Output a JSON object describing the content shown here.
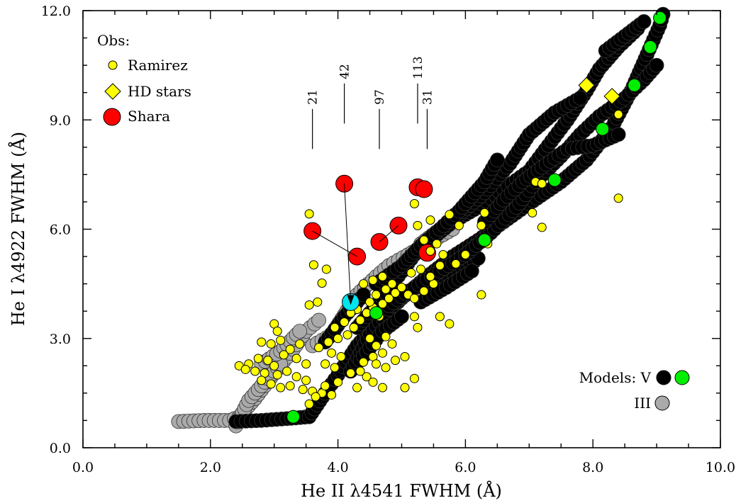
{
  "chart_data": {
    "type": "scatter",
    "xlabel": "He II λ4541 FWHM (Å)",
    "ylabel": "He I λ4922 FWHM (Å)",
    "xlim": [
      0,
      10
    ],
    "ylim": [
      0,
      12
    ],
    "x_ticks": [
      "0.0",
      "2.0",
      "4.0",
      "6.0",
      "8.0",
      "10.0"
    ],
    "y_ticks": [
      "0.0",
      "3.0",
      "6.0",
      "9.0",
      "12.0"
    ],
    "grid": false,
    "legend": {
      "title": "Obs:",
      "placement": "top-left",
      "entries": [
        {
          "label": "Ramirez",
          "marker": "small-circle",
          "color": "#ffff00"
        },
        {
          "label": "HD stars",
          "marker": "diamond",
          "color": "#ffff00"
        },
        {
          "label": "Shara",
          "marker": "large-circle",
          "color": "#ff0000"
        }
      ]
    },
    "models_legend": {
      "placement": "bottom-right",
      "v_label": "Models: V",
      "iii_label": "III",
      "v_colors": [
        "#000000",
        "#00ee00"
      ],
      "iii_color": "#aaaaaa"
    },
    "column_markers": [
      {
        "label": "21",
        "x": 3.6,
        "y_bottom": 8.2,
        "y_top": 9.3
      },
      {
        "label": "42",
        "x": 4.1,
        "y_bottom": 8.9,
        "y_top": 10.0
      },
      {
        "label": "97",
        "x": 4.65,
        "y_bottom": 8.2,
        "y_top": 9.3
      },
      {
        "label": "113",
        "x": 5.25,
        "y_bottom": 8.9,
        "y_top": 10.0
      },
      {
        "label": "31",
        "x": 5.4,
        "y_bottom": 8.2,
        "y_top": 9.3
      }
    ],
    "series": [
      {
        "name": "Shara",
        "marker": "large-circle",
        "color": "#ff0000",
        "points": [
          [
            4.1,
            7.25
          ],
          [
            3.6,
            5.95
          ],
          [
            4.3,
            5.25
          ],
          [
            4.65,
            5.65
          ],
          [
            4.95,
            6.1
          ],
          [
            5.25,
            7.15
          ],
          [
            5.35,
            7.1
          ],
          [
            5.4,
            5.35
          ]
        ]
      },
      {
        "name": "HD stars",
        "marker": "diamond",
        "color": "#ffff00",
        "points": [
          [
            7.9,
            9.95
          ],
          [
            8.3,
            9.65
          ]
        ]
      },
      {
        "name": "Ramirez",
        "marker": "small-circle",
        "color": "#ffff00",
        "points": [
          [
            3.55,
            6.42
          ],
          [
            3.62,
            5.02
          ],
          [
            3.75,
            4.52
          ],
          [
            3.82,
            4.9
          ],
          [
            3.68,
            4.0
          ],
          [
            3.55,
            3.92
          ],
          [
            3.0,
            3.4
          ],
          [
            3.05,
            3.2
          ],
          [
            2.8,
            2.9
          ],
          [
            2.95,
            2.85
          ],
          [
            3.1,
            2.95
          ],
          [
            3.25,
            2.7
          ],
          [
            3.4,
            2.85
          ],
          [
            3.15,
            2.55
          ],
          [
            2.75,
            2.45
          ],
          [
            2.9,
            2.4
          ],
          [
            3.0,
            2.25
          ],
          [
            2.6,
            2.3
          ],
          [
            2.45,
            2.25
          ],
          [
            2.55,
            2.15
          ],
          [
            2.7,
            2.1
          ],
          [
            2.85,
            2.05
          ],
          [
            3.05,
            2.0
          ],
          [
            3.2,
            2.1
          ],
          [
            3.35,
            1.95
          ],
          [
            3.5,
            1.85
          ],
          [
            2.8,
            1.85
          ],
          [
            2.95,
            1.75
          ],
          [
            3.1,
            1.65
          ],
          [
            3.25,
            1.7
          ],
          [
            3.45,
            1.6
          ],
          [
            3.6,
            1.55
          ],
          [
            3.75,
            1.5
          ],
          [
            3.9,
            1.45
          ],
          [
            3.65,
            1.4
          ],
          [
            3.55,
            1.2
          ],
          [
            3.8,
            2.3
          ],
          [
            3.95,
            2.2
          ],
          [
            4.05,
            2.5
          ],
          [
            3.9,
            2.6
          ],
          [
            3.7,
            2.75
          ],
          [
            3.85,
            2.9
          ],
          [
            4.0,
            3.0
          ],
          [
            4.15,
            3.1
          ],
          [
            3.95,
            3.3
          ],
          [
            4.1,
            3.45
          ],
          [
            4.25,
            3.3
          ],
          [
            4.35,
            3.5
          ],
          [
            4.45,
            3.7
          ],
          [
            4.55,
            3.85
          ],
          [
            4.65,
            3.6
          ],
          [
            4.7,
            3.95
          ],
          [
            4.8,
            4.1
          ],
          [
            4.9,
            4.25
          ],
          [
            4.75,
            4.35
          ],
          [
            4.6,
            4.2
          ],
          [
            4.5,
            4.0
          ],
          [
            4.3,
            3.8
          ],
          [
            4.2,
            3.7
          ],
          [
            4.4,
            4.5
          ],
          [
            4.55,
            4.6
          ],
          [
            4.7,
            4.7
          ],
          [
            4.85,
            4.5
          ],
          [
            5.0,
            4.4
          ],
          [
            5.1,
            4.2
          ],
          [
            5.2,
            4.1
          ],
          [
            5.35,
            4.3
          ],
          [
            5.5,
            4.5
          ],
          [
            5.45,
            4.7
          ],
          [
            5.3,
            4.9
          ],
          [
            5.15,
            4.8
          ],
          [
            5.6,
            5.0
          ],
          [
            5.65,
            5.3
          ],
          [
            5.55,
            5.6
          ],
          [
            5.45,
            5.4
          ],
          [
            5.35,
            5.7
          ],
          [
            5.25,
            6.1
          ],
          [
            5.45,
            6.25
          ],
          [
            5.75,
            6.4
          ],
          [
            5.9,
            6.1
          ],
          [
            5.2,
            6.7
          ],
          [
            5.6,
            3.6
          ],
          [
            5.75,
            3.4
          ],
          [
            5.25,
            3.3
          ],
          [
            5.2,
            3.6
          ],
          [
            4.5,
            3.0
          ],
          [
            4.6,
            2.8
          ],
          [
            4.75,
            3.05
          ],
          [
            4.85,
            2.85
          ],
          [
            4.7,
            2.6
          ],
          [
            4.55,
            2.5
          ],
          [
            4.4,
            2.35
          ],
          [
            4.6,
            2.3
          ],
          [
            4.75,
            2.2
          ],
          [
            4.9,
            2.4
          ],
          [
            5.05,
            2.5
          ],
          [
            4.45,
            1.95
          ],
          [
            4.55,
            1.8
          ],
          [
            4.3,
            1.65
          ],
          [
            4.7,
            1.65
          ],
          [
            5.05,
            1.65
          ],
          [
            5.2,
            1.9
          ],
          [
            4.0,
            1.8
          ],
          [
            3.8,
            1.7
          ],
          [
            3.5,
            2.3
          ],
          [
            3.35,
            2.45
          ],
          [
            4.2,
            2.05
          ],
          [
            4.35,
            2.1
          ],
          [
            6.35,
            5.6
          ],
          [
            6.25,
            6.1
          ],
          [
            6.3,
            6.45
          ],
          [
            6.25,
            4.2
          ],
          [
            6.0,
            5.3
          ],
          [
            5.85,
            5.05
          ],
          [
            7.1,
            7.3
          ],
          [
            7.2,
            7.25
          ],
          [
            7.05,
            6.45
          ],
          [
            7.2,
            6.05
          ],
          [
            8.4,
            6.85
          ],
          [
            8.4,
            9.15
          ]
        ]
      },
      {
        "name": "Shara bare circle",
        "marker": "large-circle",
        "color": "#00e5ee",
        "points": [
          [
            4.2,
            4.0
          ]
        ]
      },
      {
        "name": "Models V (green)",
        "marker": "medium-circle",
        "color": "#00ee00",
        "points": [
          [
            9.05,
            11.8
          ],
          [
            8.9,
            11.0
          ],
          [
            8.65,
            9.95
          ],
          [
            8.15,
            8.75
          ],
          [
            7.4,
            7.35
          ],
          [
            6.3,
            5.7
          ],
          [
            3.3,
            0.85
          ],
          [
            4.6,
            3.7
          ]
        ]
      }
    ],
    "model_tracks": {
      "V": [
        [
          [
            2.4,
            0.72
          ],
          [
            2.8,
            0.75
          ],
          [
            3.2,
            0.8
          ],
          [
            3.55,
            0.85
          ],
          [
            3.8,
            1.5
          ],
          [
            4.0,
            2.0
          ],
          [
            4.3,
            2.8
          ],
          [
            4.6,
            3.4
          ],
          [
            5.0,
            4.1
          ],
          [
            5.4,
            4.7
          ],
          [
            5.8,
            5.25
          ],
          [
            6.2,
            5.7
          ],
          [
            6.6,
            6.2
          ],
          [
            7.0,
            6.7
          ],
          [
            7.5,
            7.3
          ],
          [
            7.9,
            7.9
          ],
          [
            8.3,
            8.8
          ],
          [
            8.6,
            9.8
          ],
          [
            8.85,
            10.8
          ],
          [
            9.05,
            11.6
          ],
          [
            9.1,
            11.9
          ]
        ],
        [
          [
            4.2,
            2.1
          ],
          [
            4.5,
            3.1
          ],
          [
            4.8,
            3.8
          ],
          [
            5.1,
            4.3
          ],
          [
            5.5,
            4.6
          ],
          [
            5.9,
            4.8
          ],
          [
            6.2,
            5.2
          ]
        ],
        [
          [
            4.3,
            3.3
          ],
          [
            4.6,
            3.9
          ],
          [
            4.9,
            4.6
          ],
          [
            5.2,
            5.3
          ],
          [
            5.45,
            5.7
          ],
          [
            5.8,
            6.2
          ],
          [
            6.2,
            6.6
          ],
          [
            6.6,
            7.1
          ],
          [
            7.0,
            7.6
          ],
          [
            7.3,
            8.3
          ],
          [
            7.6,
            9.0
          ],
          [
            7.9,
            9.8
          ],
          [
            8.1,
            10.4
          ],
          [
            8.4,
            11.0
          ],
          [
            8.7,
            11.5
          ]
        ],
        [
          [
            4.8,
            3.9
          ],
          [
            5.2,
            4.4
          ],
          [
            5.6,
            4.85
          ],
          [
            6.0,
            5.3
          ],
          [
            6.4,
            5.9
          ],
          [
            6.8,
            6.6
          ],
          [
            7.1,
            7.3
          ],
          [
            7.5,
            8.0
          ],
          [
            7.8,
            8.6
          ],
          [
            8.1,
            9.1
          ],
          [
            8.5,
            9.6
          ],
          [
            8.8,
            10.1
          ],
          [
            9.0,
            10.5
          ]
        ],
        [
          [
            5.3,
            4.0
          ],
          [
            5.7,
            4.4
          ],
          [
            6.1,
            4.85
          ]
        ],
        [
          [
            6.3,
            6.2
          ],
          [
            6.6,
            6.8
          ],
          [
            6.9,
            7.3
          ],
          [
            7.2,
            7.7
          ],
          [
            7.6,
            8.2
          ],
          [
            8.0,
            8.3
          ],
          [
            8.4,
            8.6
          ]
        ],
        [
          [
            5.9,
            6.4
          ],
          [
            6.3,
            7.0
          ],
          [
            6.7,
            7.8
          ],
          [
            7.0,
            8.6
          ],
          [
            7.4,
            9.2
          ],
          [
            7.8,
            9.6
          ]
        ],
        [
          [
            8.2,
            10.9
          ],
          [
            8.5,
            11.3
          ],
          [
            8.8,
            11.7
          ]
        ],
        [
          [
            4.35,
            2.4
          ],
          [
            4.7,
            3.2
          ],
          [
            5.0,
            3.6
          ]
        ],
        [
          [
            4.6,
            4.5
          ],
          [
            5.0,
            5.0
          ],
          [
            5.3,
            5.55
          ],
          [
            5.6,
            6.0
          ],
          [
            5.9,
            6.5
          ],
          [
            6.3,
            7.3
          ],
          [
            6.5,
            7.9
          ]
        ],
        [
          [
            3.8,
            2.9
          ],
          [
            4.1,
            3.6
          ],
          [
            4.4,
            4.2
          ]
        ]
      ],
      "III": [
        [
          [
            1.5,
            0.72
          ],
          [
            1.9,
            0.75
          ],
          [
            2.3,
            0.75
          ],
          [
            2.45,
            0.85
          ],
          [
            2.7,
            1.35
          ],
          [
            3.0,
            2.05
          ],
          [
            3.3,
            2.7
          ],
          [
            3.5,
            3.2
          ],
          [
            3.7,
            3.5
          ]
        ],
        [
          [
            2.4,
            0.6
          ],
          [
            2.6,
            1.3
          ],
          [
            2.9,
            1.9
          ],
          [
            3.1,
            2.3
          ]
        ],
        [
          [
            3.6,
            2.8
          ],
          [
            3.9,
            3.1
          ],
          [
            4.3,
            4.2
          ],
          [
            4.6,
            4.7
          ],
          [
            4.8,
            5.0
          ],
          [
            5.1,
            5.3
          ],
          [
            5.5,
            5.7
          ],
          [
            5.8,
            6.0
          ]
        ],
        [
          [
            5.3,
            5.6
          ],
          [
            5.6,
            6.0
          ],
          [
            6.0,
            6.5
          ],
          [
            6.4,
            7.0
          ]
        ],
        [
          [
            2.8,
            2.3
          ],
          [
            3.1,
            2.65
          ],
          [
            3.4,
            3.2
          ]
        ]
      ]
    }
  }
}
